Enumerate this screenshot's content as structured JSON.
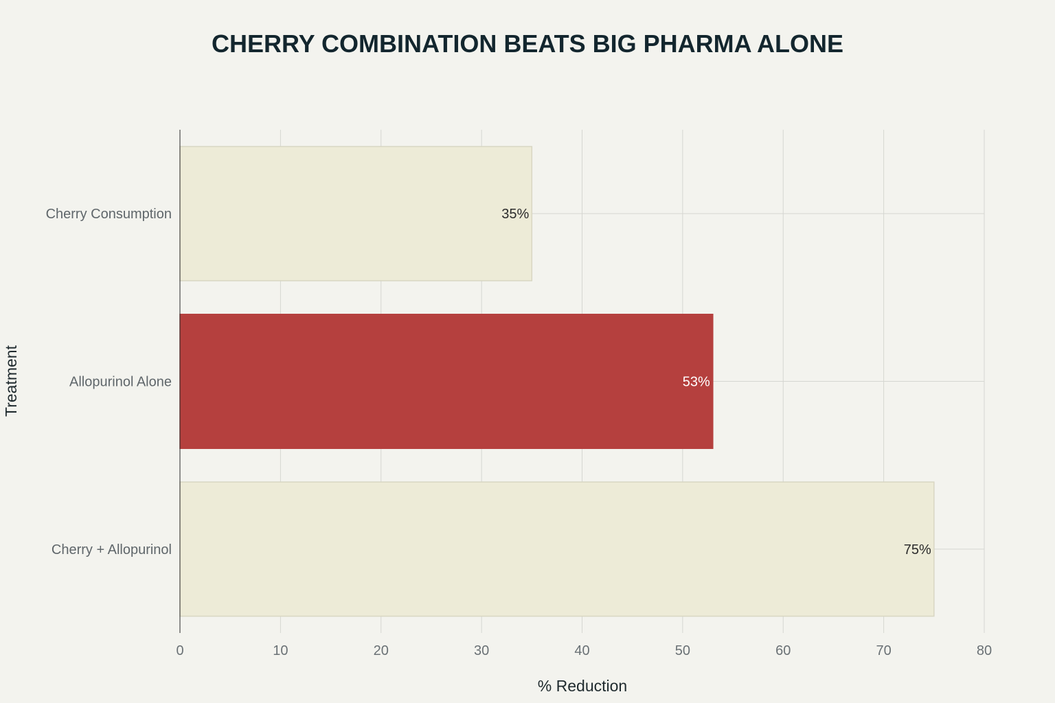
{
  "chart_data": {
    "type": "bar",
    "orientation": "horizontal",
    "title": "CHERRY COMBINATION BEATS BIG PHARMA ALONE",
    "xlabel": "% Reduction",
    "ylabel": "Treatment",
    "categories": [
      "Cherry Consumption",
      "Allopurinol Alone",
      "Cherry + Allopurinol"
    ],
    "values": [
      35,
      53,
      75
    ],
    "data_labels": [
      "35%",
      "53%",
      "75%"
    ],
    "xlim": [
      0,
      80
    ],
    "x_ticks": [
      0,
      10,
      20,
      30,
      40,
      50,
      60,
      70,
      80
    ],
    "grid": true,
    "colors": {
      "default_bar": "#edebd7",
      "default_bar_border": "#d8d6c2",
      "highlight_bar": "#b5403e",
      "highlight_index": 1,
      "background": "#f3f3ee",
      "grid": "#d5d6d1",
      "label_dark": "#2b2b2b",
      "label_light": "#ffffff"
    }
  }
}
